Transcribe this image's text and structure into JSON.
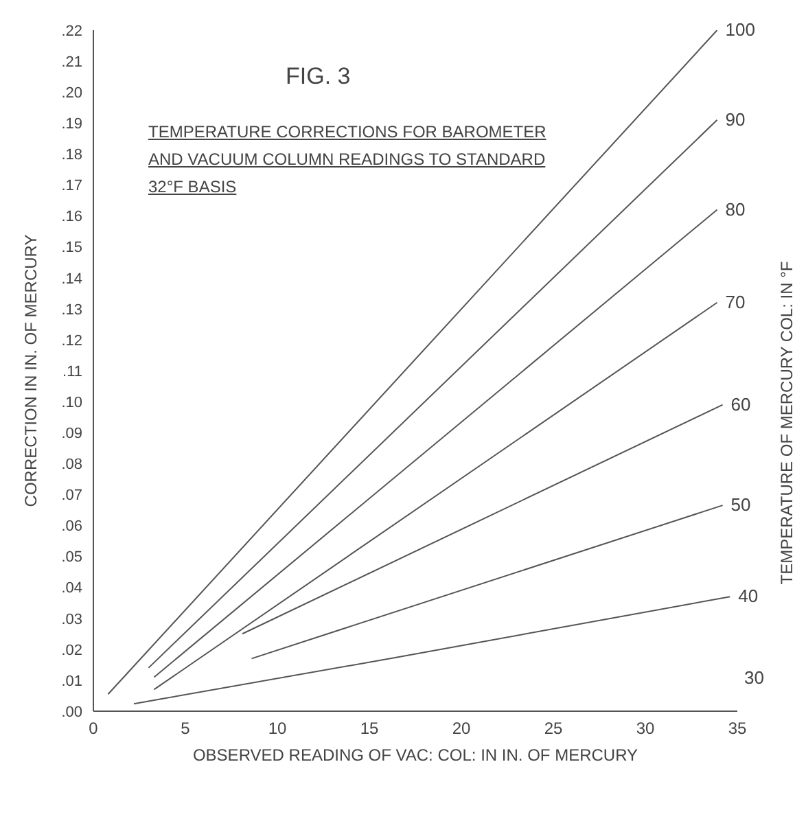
{
  "chart_data": {
    "type": "line",
    "title": "FIG. 3",
    "subtitle": "TEMPERATURE CORRECTIONS FOR BAROMETER AND VACUUM COLUMN READINGS TO STANDARD 32°F BASIS",
    "xlabel": "OBSERVED READING OF VAC: COL: IN IN. OF MERCURY",
    "ylabel": "CORRECTION IN IN. OF MERCURY",
    "y2label": "TEMPERATURE OF MERCURY COL: IN °F",
    "series": [
      {
        "name": "100",
        "color": "#555555",
        "x": [
          0.8,
          33.9
        ],
        "values": [
          0.0055,
          0.22
        ]
      },
      {
        "name": "90",
        "color": "#555555",
        "x": [
          3,
          33.9
        ],
        "values": [
          0.014,
          0.191
        ]
      },
      {
        "name": "80",
        "color": "#555555",
        "x": [
          3.3,
          33.9
        ],
        "values": [
          0.011,
          0.162
        ]
      },
      {
        "name": "70",
        "color": "#555555",
        "x": [
          3.3,
          33.9
        ],
        "values": [
          0.007,
          0.132
        ]
      },
      {
        "name": "60",
        "color": "#555555",
        "x": [
          8.1,
          34.2
        ],
        "values": [
          0.025,
          0.099
        ]
      },
      {
        "name": "50",
        "color": "#555555",
        "x": [
          8.6,
          34.2
        ],
        "values": [
          0.017,
          0.0665
        ]
      },
      {
        "name": "40",
        "color": "#555555",
        "x": [
          2.2,
          16.4,
          34.6
        ],
        "values": [
          0.0024,
          0.0173,
          0.037
        ]
      }
    ],
    "annotations": [
      "30"
    ],
    "xlim": [
      0,
      35
    ],
    "xticks": [
      0,
      5,
      10,
      15,
      20,
      25,
      30,
      35
    ],
    "ylim": [
      0,
      0.22
    ],
    "yticks": [
      {
        "value": 0,
        "label": ".00"
      },
      {
        "value": 0.01,
        "label": ".01"
      },
      {
        "value": 0.02,
        "label": ".02"
      },
      {
        "value": 0.03,
        "label": ".03"
      },
      {
        "value": 0.04,
        "label": ".04"
      },
      {
        "value": 0.05,
        "label": ".05"
      },
      {
        "value": 0.06,
        "label": ".06"
      },
      {
        "value": 0.07,
        "label": ".07"
      },
      {
        "value": 0.08,
        "label": ".08"
      },
      {
        "value": 0.09,
        "label": ".09"
      },
      {
        "value": 0.1,
        "label": ".10"
      },
      {
        "value": 0.11,
        "label": ".11"
      },
      {
        "value": 0.12,
        "label": ".12"
      },
      {
        "value": 0.13,
        "label": ".13"
      },
      {
        "value": 0.14,
        "label": ".14"
      },
      {
        "value": 0.15,
        "label": ".15"
      },
      {
        "value": 0.16,
        "label": ".16"
      },
      {
        "value": 0.17,
        "label": ".17"
      },
      {
        "value": 0.18,
        "label": ".18"
      },
      {
        "value": 0.19,
        "label": ".19"
      },
      {
        "value": 0.2,
        "label": ".20"
      },
      {
        "value": 0.21,
        "label": ".21"
      },
      {
        "value": 0.22,
        "label": ".22"
      }
    ],
    "grid": false,
    "legend": false,
    "marker": "none",
    "line_style": "solid"
  }
}
